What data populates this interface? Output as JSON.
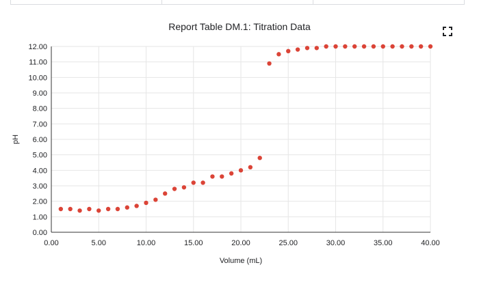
{
  "chart_data": {
    "type": "scatter",
    "title": "Report Table DM.1: Titration Data",
    "xlabel": "Volume (mL)",
    "ylabel": "pH",
    "xlim": [
      0,
      40
    ],
    "ylim": [
      0,
      12
    ],
    "x_ticks": [
      "0.00",
      "5.00",
      "10.00",
      "15.00",
      "20.00",
      "25.00",
      "30.00",
      "35.00",
      "40.00"
    ],
    "y_ticks": [
      "0.00",
      "1.00",
      "2.00",
      "3.00",
      "4.00",
      "5.00",
      "6.00",
      "7.00",
      "8.00",
      "9.00",
      "10.00",
      "11.00",
      "12.00"
    ],
    "grid": true,
    "legend": "none",
    "marker_color": "#db4437",
    "series": [
      {
        "x": [
          1,
          2,
          3,
          4,
          5,
          6,
          7,
          8,
          9,
          10,
          11,
          12,
          13,
          14,
          15,
          16,
          17,
          18,
          19,
          20,
          21,
          22,
          23,
          24,
          25,
          26,
          27,
          28,
          29,
          30,
          31,
          32,
          33,
          34,
          35,
          36,
          37,
          38,
          39,
          40
        ],
        "y": [
          1.5,
          1.5,
          1.4,
          1.5,
          1.4,
          1.5,
          1.5,
          1.6,
          1.7,
          1.9,
          2.1,
          2.5,
          2.8,
          2.9,
          3.2,
          3.2,
          3.6,
          3.6,
          3.8,
          4.0,
          4.2,
          4.8,
          10.9,
          11.5,
          11.7,
          11.8,
          11.9,
          11.9,
          12.0,
          12.0,
          12.0,
          12.0,
          12.0,
          12.0,
          12.0,
          12.0,
          12.0,
          12.0,
          12.0,
          12.0
        ]
      }
    ]
  },
  "icons": {
    "fullscreen": "fullscreen-icon"
  }
}
